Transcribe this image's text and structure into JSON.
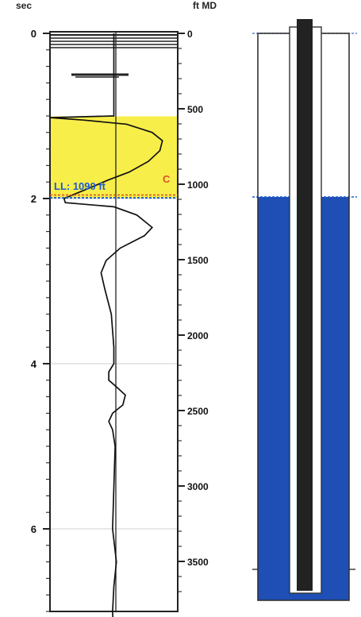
{
  "chart_data": [
    {
      "type": "line",
      "panel": "log-track",
      "header_left": "sec",
      "header_right": "ft MD",
      "left_axis": {
        "label": "sec",
        "ticks": [
          0,
          2,
          4,
          6
        ],
        "range": [
          0,
          7.4
        ]
      },
      "right_axis": {
        "label": "ft MD",
        "ticks": [
          0,
          500,
          1000,
          1500,
          2000,
          2500,
          3000,
          3500
        ],
        "range": [
          0,
          3800
        ]
      },
      "highlight_zone": {
        "from_ft": 550,
        "to_ft": 1090,
        "color": "#f7ee4a"
      },
      "liquid_level": {
        "label": "LL: 1090 ft",
        "depth_ft": 1090,
        "color": "#1f5bd0"
      },
      "collar_marker": {
        "label": "C",
        "depth_ft": 1040,
        "color": "#d9542b"
      },
      "gridlines_sec": [
        2,
        4,
        6
      ],
      "trace": {
        "name": "",
        "baseline_x": 0.5,
        "points": [
          [
            0.0,
            0.5
          ],
          [
            0.35,
            0.5
          ],
          [
            0.7,
            0.5
          ],
          [
            1.0,
            0.5
          ],
          [
            1.02,
            0.0
          ],
          [
            1.05,
            0.26
          ],
          [
            1.1,
            0.6
          ],
          [
            1.2,
            0.8
          ],
          [
            1.3,
            0.88
          ],
          [
            1.42,
            0.86
          ],
          [
            1.55,
            0.77
          ],
          [
            1.68,
            0.62
          ],
          [
            1.78,
            0.45
          ],
          [
            1.86,
            0.33
          ],
          [
            1.93,
            0.22
          ],
          [
            2.0,
            0.11
          ],
          [
            2.05,
            0.12
          ],
          [
            2.1,
            0.5
          ],
          [
            2.2,
            0.68
          ],
          [
            2.35,
            0.8
          ],
          [
            2.45,
            0.74
          ],
          [
            2.6,
            0.55
          ],
          [
            2.75,
            0.44
          ],
          [
            2.9,
            0.4
          ],
          [
            3.1,
            0.43
          ],
          [
            3.4,
            0.48
          ],
          [
            3.8,
            0.5
          ],
          [
            4.0,
            0.5
          ],
          [
            4.1,
            0.46
          ],
          [
            4.2,
            0.46
          ],
          [
            4.28,
            0.52
          ],
          [
            4.38,
            0.59
          ],
          [
            4.5,
            0.57
          ],
          [
            4.6,
            0.49
          ],
          [
            4.7,
            0.46
          ],
          [
            4.8,
            0.49
          ],
          [
            5.0,
            0.51
          ],
          [
            5.5,
            0.5
          ],
          [
            6.0,
            0.49
          ],
          [
            6.4,
            0.52
          ],
          [
            6.7,
            0.5
          ],
          [
            7.0,
            0.49
          ],
          [
            7.4,
            0.5
          ]
        ]
      }
    },
    {
      "type": "diagram",
      "panel": "wellbore",
      "liquid_level_ft": 1090,
      "bottom_ft": 3800,
      "fluid_color": "#1f4fb4",
      "tubing_color": "#222222"
    }
  ]
}
